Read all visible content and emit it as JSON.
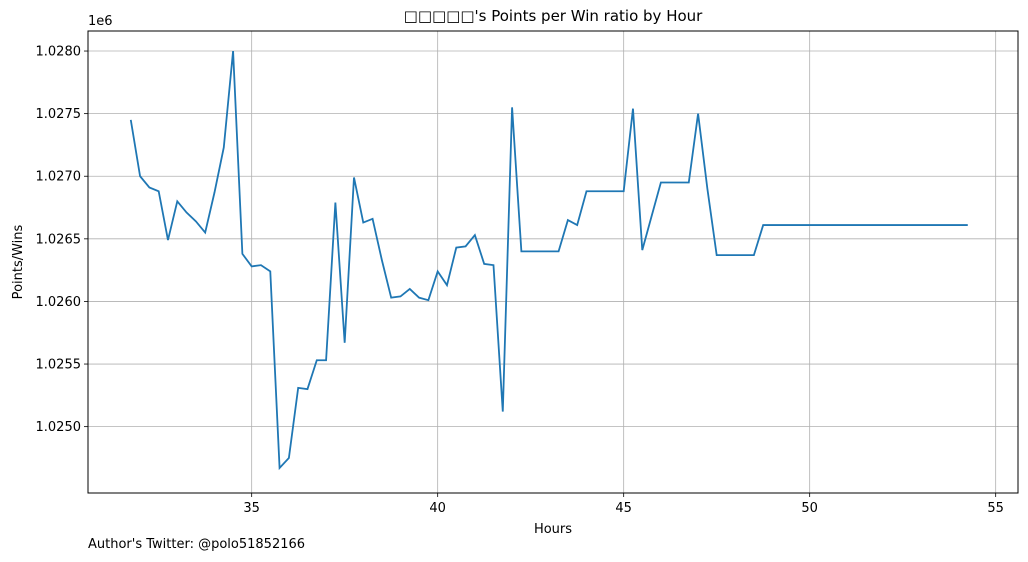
{
  "chart_data": {
    "type": "line",
    "title": "□□□□□'s Points per Win ratio by Hour",
    "xlabel": "Hours",
    "ylabel": "Points/Wins",
    "offset_text": "1e6",
    "xlim": [
      30.6,
      55.6
    ],
    "ylim": [
      1.02447,
      1.02816
    ],
    "x_ticks": [
      35,
      40,
      45,
      50,
      55
    ],
    "y_ticks": [
      1.025,
      1.0255,
      1.026,
      1.0265,
      1.027,
      1.0275,
      1.028
    ],
    "y_tick_labels": [
      "1.0250",
      "1.0255",
      "1.0260",
      "1.0265",
      "1.0270",
      "1.0275",
      "1.0280"
    ],
    "grid": true,
    "line_color": "#1f77b4",
    "series": [
      {
        "x": [
          31.75,
          32.0,
          32.25,
          32.5,
          32.75,
          33.0,
          33.25,
          33.5,
          33.75,
          34.0,
          34.25,
          34.5,
          34.75,
          35.0,
          35.25,
          35.5,
          35.75,
          36.0,
          36.25,
          36.5,
          36.75,
          37.0,
          37.25,
          37.5,
          37.75,
          38.0,
          38.25,
          38.5,
          38.75,
          39.0,
          39.25,
          39.5,
          39.75,
          40.0,
          40.25,
          40.5,
          40.75,
          41.0,
          41.25,
          41.5,
          41.75,
          42.0,
          42.25,
          42.5,
          42.75,
          43.0,
          43.25,
          43.5,
          43.75,
          44.0,
          44.25,
          44.5,
          44.75,
          45.0,
          45.25,
          45.5,
          45.75,
          46.0,
          46.25,
          46.5,
          46.75,
          47.0,
          47.25,
          47.5,
          47.75,
          48.0,
          48.25,
          48.5,
          48.75,
          49.0,
          54.25
        ],
        "values": [
          1.02745,
          1.027,
          1.02691,
          1.02688,
          1.02649,
          1.0268,
          1.02671,
          1.02664,
          1.02655,
          1.02687,
          1.02723,
          1.028,
          1.02638,
          1.02628,
          1.02629,
          1.02624,
          1.02467,
          1.02475,
          1.02531,
          1.0253,
          1.02553,
          1.02553,
          1.02679,
          1.02567,
          1.02699,
          1.02663,
          1.02666,
          1.02633,
          1.02603,
          1.02604,
          1.0261,
          1.02603,
          1.02601,
          1.02624,
          1.02613,
          1.02643,
          1.02644,
          1.02653,
          1.0263,
          1.02629,
          1.02512,
          1.02755,
          1.0264,
          1.0264,
          1.0264,
          1.0264,
          1.0264,
          1.02665,
          1.02661,
          1.02688,
          1.02688,
          1.02688,
          1.02688,
          1.02688,
          1.02754,
          1.02641,
          1.02668,
          1.02695,
          1.02695,
          1.02695,
          1.02695,
          1.0275,
          1.0269,
          1.02637,
          1.02637,
          1.02637,
          1.02637,
          1.02637,
          1.02661,
          1.02661,
          1.02661
        ]
      }
    ]
  },
  "footer": {
    "author": "Author's Twitter: @polo51852166"
  }
}
